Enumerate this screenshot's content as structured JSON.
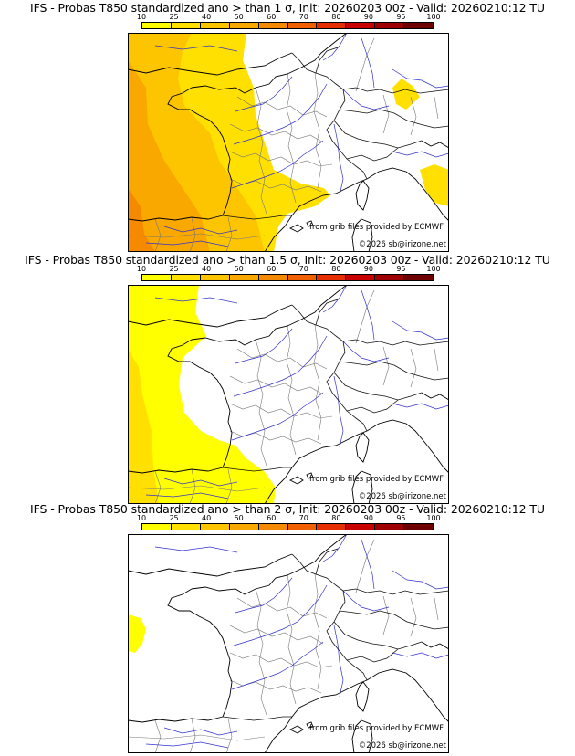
{
  "colorbar": {
    "ticks": [
      "10",
      "25",
      "40",
      "50",
      "60",
      "70",
      "80",
      "90",
      "95",
      "100"
    ],
    "colors": [
      "#ffff00",
      "#ffe000",
      "#fdc400",
      "#f9a800",
      "#f58a00",
      "#f06000",
      "#e62e00",
      "#c80000",
      "#9e0000",
      "#6e0000"
    ]
  },
  "panels": [
    {
      "title": "IFS - Probas T850  standardized ano > than 1 σ, Init: 20260203 00z - Valid: 20260210:12 TU",
      "credit": "from grib files provided by ECMWF",
      "copyright": "©2026 sb@irizone.net"
    },
    {
      "title": "IFS - Probas T850  standardized ano > than 1.5 σ, Init: 20260203 00z - Valid: 20260210:12 TU",
      "credit": "from grib files provided by ECMWF",
      "copyright": "©2026 sb@irizone.net"
    },
    {
      "title": "IFS - Probas T850  standardized ano > than 2 σ, Init: 20260203 00z - Valid: 20260210:12 TU",
      "credit": "from grib files provided by ECMWF",
      "copyright": "©2026 sb@irizone.net"
    }
  ]
}
